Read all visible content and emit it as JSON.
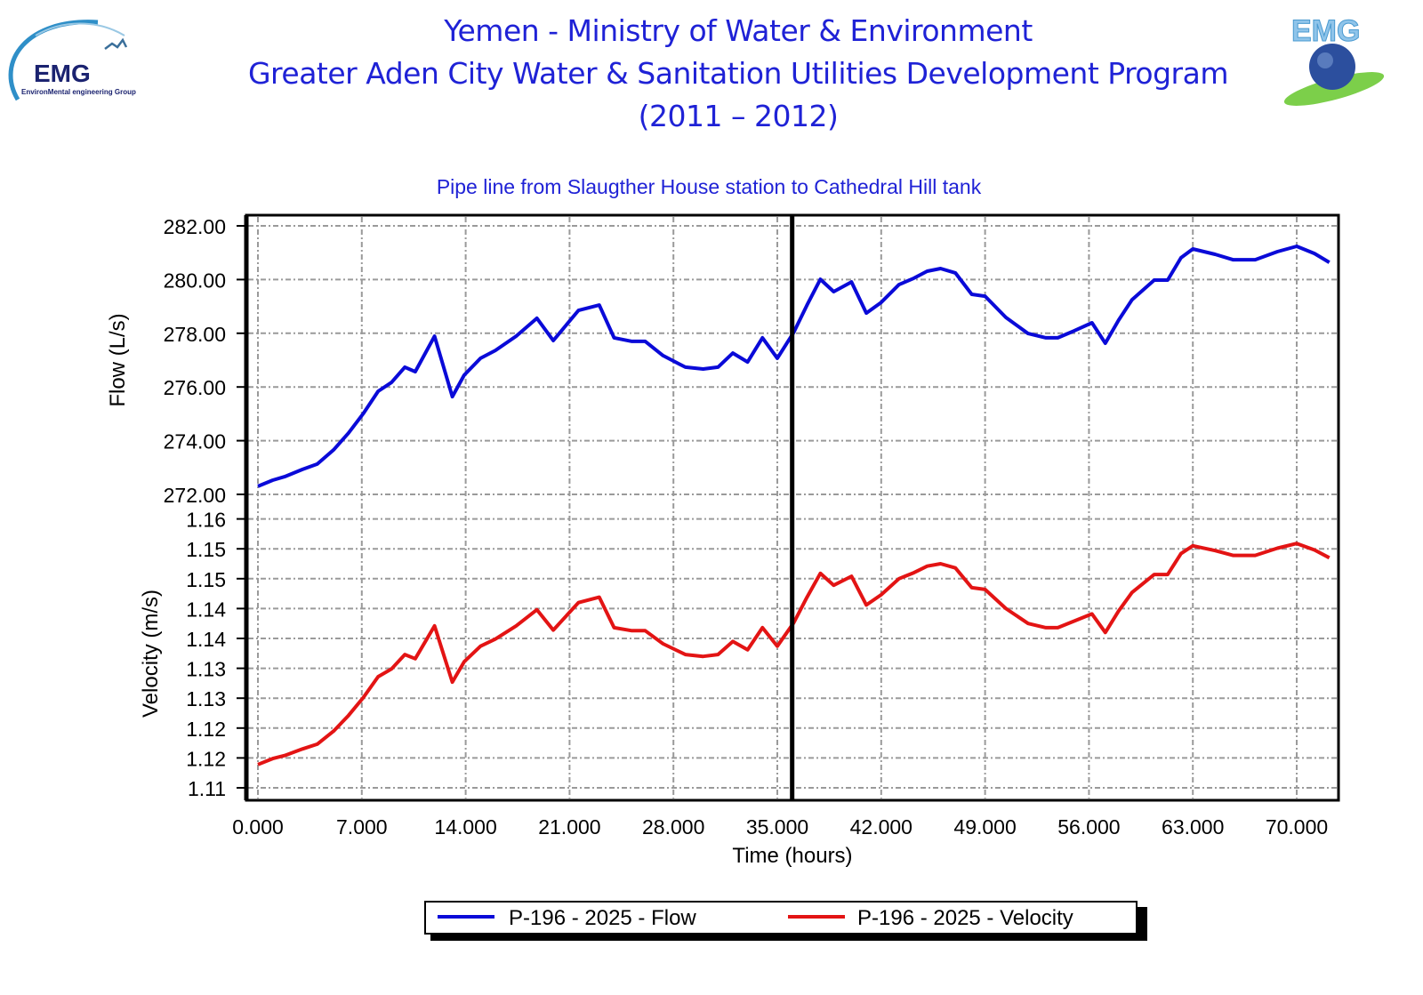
{
  "header": {
    "line1": "Yemen - Ministry of Water & Environment",
    "line2": "Greater Aden City Water & Sanitation Utilities Development Program",
    "line3": "(2011 – 2012)",
    "logo_left_text": "EMG",
    "logo_left_subtitle": "EnvironMental engineering Group",
    "logo_right_text": "EMG"
  },
  "colors": {
    "header": "#1f22d6",
    "flow": "#0a0ad8",
    "velocity": "#e31414",
    "grid": "#9a9a9a",
    "cursor": "#000000"
  },
  "chart_data": {
    "type": "line",
    "title": "Pipe line from Slaugther House station to Cathedral Hill tank",
    "xlabel": "Time (hours)",
    "xlim": [
      0,
      72.8
    ],
    "x_ticks": [
      "0.000",
      "7.000",
      "14.000",
      "21.000",
      "28.000",
      "35.000",
      "42.000",
      "49.000",
      "56.000",
      "63.000",
      "70.000"
    ],
    "grid": true,
    "cursor_x": 36.0,
    "legend_position": "bottom",
    "panels": [
      {
        "ylabel": "Flow (L/s)",
        "ylim": [
          272,
          282
        ],
        "y_ticks": [
          "282.00",
          "280.00",
          "278.00",
          "276.00",
          "274.00",
          "272.00"
        ],
        "series": [
          {
            "name": "P-196 - 2025 - Flow",
            "color": "#0a0ad8",
            "x": [
              0,
              1.0,
              1.8,
              3.0,
              4.0,
              5.1,
              6.1,
              7.1,
              8.1,
              9.0,
              9.9,
              10.6,
              11.9,
              13.1,
              13.9,
              15.0,
              16.0,
              17.4,
              18.8,
              19.9,
              21.6,
              23.0,
              24.0,
              25.2,
              26.1,
              27.3,
              28.8,
              30.0,
              31.0,
              32.0,
              33.0,
              34.0,
              35.0,
              36.1,
              37.0,
              37.9,
              38.8,
              40.0,
              41.0,
              42.0,
              43.2,
              44.2,
              45.1,
              46.0,
              47.0,
              48.1,
              49.0,
              50.4,
              51.9,
              53.1,
              53.9,
              55.0,
              56.2,
              57.1,
              58.0,
              58.9,
              60.4,
              61.3,
              62.2,
              63.0,
              64.5,
              65.7,
              67.2,
              68.7,
              70.0,
              71.2,
              72.2
            ],
            "y": [
              272.3,
              272.53,
              272.66,
              272.93,
              273.13,
              273.66,
              274.28,
              275.01,
              275.84,
              276.17,
              276.74,
              276.57,
              277.89,
              275.64,
              276.44,
              277.07,
              277.36,
              277.89,
              278.56,
              277.73,
              278.85,
              279.05,
              277.83,
              277.7,
              277.7,
              277.17,
              276.74,
              276.67,
              276.74,
              277.26,
              276.93,
              277.83,
              277.07,
              278.03,
              279.05,
              280.01,
              279.55,
              279.91,
              278.75,
              279.15,
              279.81,
              280.05,
              280.31,
              280.41,
              280.25,
              279.45,
              279.38,
              278.59,
              277.99,
              277.83,
              277.83,
              278.09,
              278.39,
              277.63,
              278.49,
              279.25,
              279.98,
              279.98,
              280.81,
              281.14,
              280.94,
              280.74,
              280.74,
              281.04,
              281.24,
              280.97,
              280.64
            ]
          }
        ]
      },
      {
        "ylabel": "Velocity (m/s)",
        "ylim": [
          1.108,
          1.1555
        ],
        "y_tick_values": [
          1.155,
          1.15,
          1.145,
          1.14,
          1.135,
          1.13,
          1.125,
          1.12,
          1.115,
          1.11
        ],
        "y_ticks": [
          "1.16",
          "1.15",
          "1.15",
          "1.14",
          "1.14",
          "1.13",
          "1.13",
          "1.12",
          "1.12",
          "1.11"
        ],
        "series": [
          {
            "name": "P-196 - 2025 - Velocity",
            "color": "#e31414",
            "x": [
              0,
              1.0,
              1.8,
              3.0,
              4.0,
              5.1,
              6.1,
              7.1,
              8.1,
              9.0,
              9.9,
              10.6,
              11.9,
              13.1,
              13.9,
              15.0,
              16.0,
              17.4,
              18.8,
              19.9,
              21.6,
              23.0,
              24.0,
              25.2,
              26.1,
              27.3,
              28.8,
              30.0,
              31.0,
              32.0,
              33.0,
              34.0,
              35.0,
              36.1,
              37.0,
              37.9,
              38.8,
              40.0,
              41.0,
              42.0,
              43.2,
              44.2,
              45.1,
              46.0,
              47.0,
              48.1,
              49.0,
              50.4,
              51.9,
              53.1,
              53.9,
              55.0,
              56.2,
              57.1,
              58.0,
              58.9,
              60.4,
              61.3,
              62.2,
              63.0,
              64.5,
              65.7,
              67.2,
              68.7,
              70.0,
              71.2,
              72.2
            ],
            "y": [
              1.1139,
              1.1149,
              1.1154,
              1.1165,
              1.1173,
              1.1195,
              1.1221,
              1.1251,
              1.1286,
              1.1299,
              1.1323,
              1.1316,
              1.1371,
              1.1277,
              1.1311,
              1.1337,
              1.1349,
              1.1371,
              1.1398,
              1.1364,
              1.141,
              1.1419,
              1.1368,
              1.1363,
              1.1363,
              1.1341,
              1.1323,
              1.132,
              1.1323,
              1.1345,
              1.1331,
              1.1368,
              1.1337,
              1.1376,
              1.1419,
              1.1459,
              1.1439,
              1.1454,
              1.1406,
              1.1423,
              1.145,
              1.146,
              1.1471,
              1.1475,
              1.1468,
              1.1435,
              1.1432,
              1.14,
              1.1375,
              1.1368,
              1.1368,
              1.1379,
              1.1391,
              1.136,
              1.1396,
              1.1427,
              1.1457,
              1.1457,
              1.1492,
              1.1505,
              1.1497,
              1.1489,
              1.1489,
              1.1501,
              1.1509,
              1.1498,
              1.1485
            ]
          }
        ]
      }
    ]
  }
}
